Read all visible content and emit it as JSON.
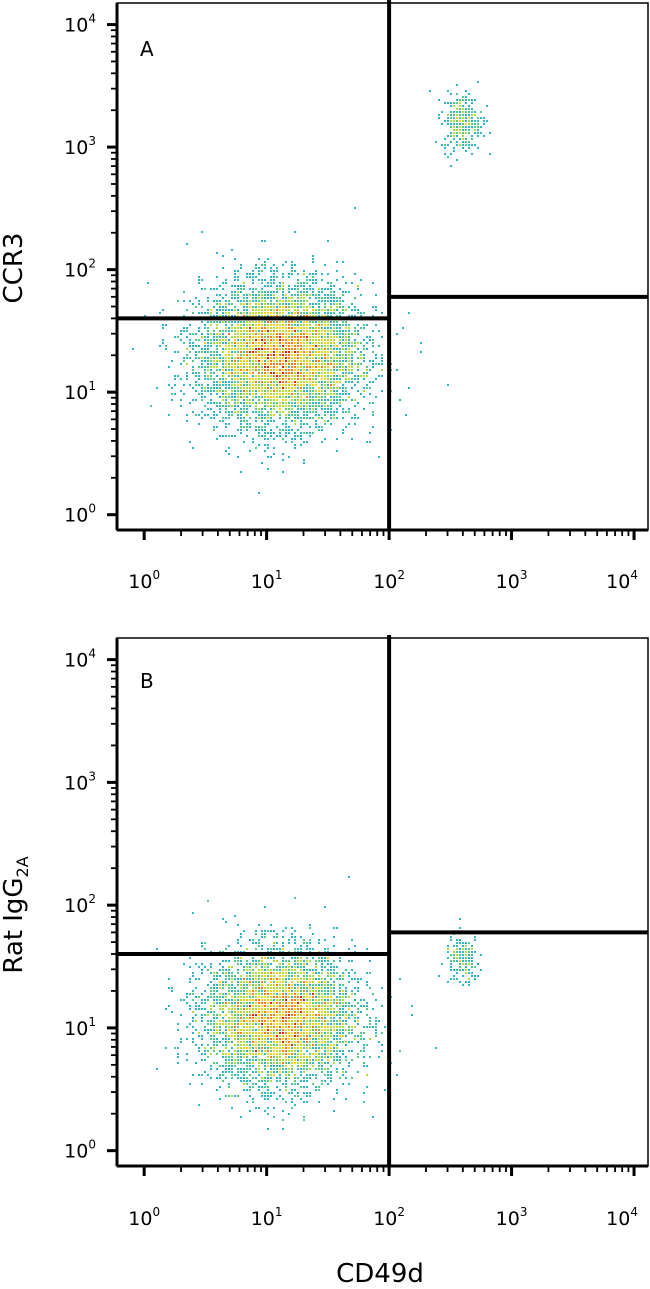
{
  "chart_data": [
    {
      "type": "scatter",
      "panel_label": "A",
      "xlabel": "",
      "ylabel": "CCR3",
      "xscale": "log",
      "yscale": "log",
      "xlim": [
        0.6,
        13000
      ],
      "ylim": [
        0.75,
        15000
      ],
      "x_tick_labels": [
        {
          "base": "10",
          "exp": "0",
          "value": 1
        },
        {
          "base": "10",
          "exp": "1",
          "value": 10
        },
        {
          "base": "10",
          "exp": "2",
          "value": 100
        },
        {
          "base": "10",
          "exp": "3",
          "value": 1000
        },
        {
          "base": "10",
          "exp": "4",
          "value": 10000
        }
      ],
      "y_tick_labels": [
        {
          "base": "10",
          "exp": "0",
          "value": 1
        },
        {
          "base": "10",
          "exp": "1",
          "value": 10
        },
        {
          "base": "10",
          "exp": "2",
          "value": 100
        },
        {
          "base": "10",
          "exp": "3",
          "value": 1000
        },
        {
          "base": "10",
          "exp": "4",
          "value": 10000
        }
      ],
      "quadrant_gates": {
        "vertical_x": 100,
        "left_horizontal_y": 40,
        "right_horizontal_y": 60
      },
      "populations": [
        {
          "name": "",
          "center": [
            13,
            20
          ],
          "spread_log10": [
            0.32,
            0.28
          ],
          "events": 7000
        },
        {
          "name": "",
          "center": [
            400,
            1600
          ],
          "spread_log10": [
            0.08,
            0.12
          ],
          "events": 300
        }
      ],
      "density_colormap": [
        "#1f3fbf",
        "#2f7fe0",
        "#2fb7c8",
        "#55c98a",
        "#b5dd3a",
        "#ffd21a",
        "#ff7a1a",
        "#e0201a"
      ]
    },
    {
      "type": "scatter",
      "panel_label": "B",
      "xlabel": "CD49d",
      "ylabel_parts": {
        "main": "Rat IgG",
        "sub": "2A"
      },
      "xscale": "log",
      "yscale": "log",
      "xlim": [
        0.6,
        13000
      ],
      "ylim": [
        0.75,
        15000
      ],
      "x_tick_labels": [
        {
          "base": "10",
          "exp": "0",
          "value": 1
        },
        {
          "base": "10",
          "exp": "1",
          "value": 10
        },
        {
          "base": "10",
          "exp": "2",
          "value": 100
        },
        {
          "base": "10",
          "exp": "3",
          "value": 1000
        },
        {
          "base": "10",
          "exp": "4",
          "value": 10000
        }
      ],
      "y_tick_labels": [
        {
          "base": "10",
          "exp": "0",
          "value": 1
        },
        {
          "base": "10",
          "exp": "1",
          "value": 10
        },
        {
          "base": "10",
          "exp": "2",
          "value": 100
        },
        {
          "base": "10",
          "exp": "3",
          "value": 1000
        },
        {
          "base": "10",
          "exp": "4",
          "value": 10000
        }
      ],
      "quadrant_gates": {
        "vertical_x": 100,
        "left_horizontal_y": 40,
        "right_horizontal_y": 60
      },
      "populations": [
        {
          "name": "",
          "center": [
            13,
            12
          ],
          "spread_log10": [
            0.3,
            0.27
          ],
          "events": 6000
        },
        {
          "name": "",
          "center": [
            400,
            35
          ],
          "spread_log10": [
            0.07,
            0.1
          ],
          "events": 160
        }
      ],
      "density_colormap": [
        "#1f3fbf",
        "#2f7fe0",
        "#2fb7c8",
        "#55c98a",
        "#b5dd3a",
        "#ffd21a",
        "#ff7a1a",
        "#e0201a"
      ]
    }
  ]
}
